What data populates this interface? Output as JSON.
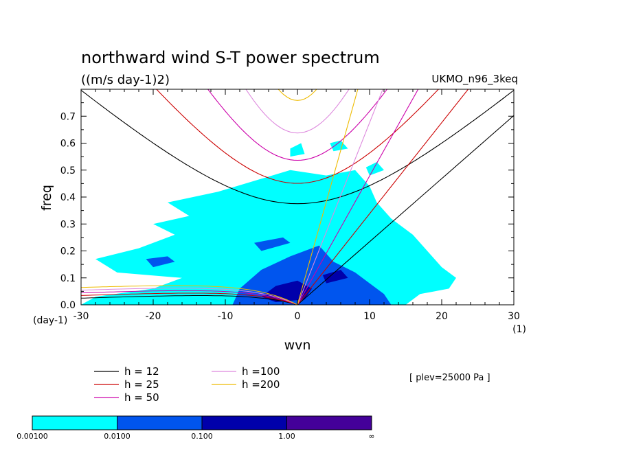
{
  "chart_data": {
    "type": "contour",
    "title": "northward wind S-T power spectrum",
    "subtitle": "((m/s day-1)2)",
    "dataset_label": "UKMO_n96_3keq",
    "xlabel": "wvn",
    "ylabel": "freq",
    "x_unit": "(1)",
    "y_unit": "(day-1)",
    "xlim": [
      -30,
      30
    ],
    "ylim": [
      0,
      0.8
    ],
    "x_ticks": [
      "-30",
      "-20",
      "-10",
      "0",
      "10",
      "20",
      "30"
    ],
    "y_ticks": [
      "0.0",
      "0.1",
      "0.2",
      "0.3",
      "0.4",
      "0.5",
      "0.6",
      "0.7"
    ],
    "level_note": "[ plev=25000 Pa ]",
    "dispersion_curves": [
      {
        "label": "h = 12",
        "h": 12,
        "color": "#000000"
      },
      {
        "label": "h = 25",
        "h": 25,
        "color": "#cc0000"
      },
      {
        "label": "h = 50",
        "h": 50,
        "color": "#cc00aa"
      },
      {
        "label": "h =100",
        "h": 100,
        "color": "#dd88dd"
      },
      {
        "label": "h =200",
        "h": 200,
        "color": "#eebb00"
      }
    ],
    "colorbar": {
      "levels": [
        "0.00100",
        "0.0100",
        "0.100",
        "1.00",
        "∞"
      ],
      "colors": [
        "#00ffff",
        "#0055ee",
        "#0000aa",
        "#440099"
      ]
    },
    "power_regions": [
      {
        "level": 1,
        "polygon": [
          [
            -30,
            0
          ],
          [
            -28,
            0.03
          ],
          [
            -20,
            0.06
          ],
          [
            -16,
            0.1
          ],
          [
            -25,
            0.12
          ],
          [
            -28,
            0.17
          ],
          [
            -22,
            0.21
          ],
          [
            -17,
            0.26
          ],
          [
            -20,
            0.3
          ],
          [
            -15,
            0.33
          ],
          [
            -18,
            0.38
          ],
          [
            -11,
            0.42
          ],
          [
            -6,
            0.46
          ],
          [
            -1,
            0.5
          ],
          [
            4,
            0.48
          ],
          [
            8,
            0.5
          ],
          [
            10,
            0.44
          ],
          [
            11,
            0.38
          ],
          [
            13,
            0.32
          ],
          [
            16,
            0.26
          ],
          [
            18,
            0.2
          ],
          [
            20,
            0.14
          ],
          [
            22,
            0.1
          ],
          [
            21,
            0.06
          ],
          [
            17,
            0.04
          ],
          [
            15,
            0
          ],
          [
            -30,
            0
          ]
        ]
      },
      {
        "level": 1,
        "polygon": [
          [
            -1,
            0.55
          ],
          [
            1,
            0.56
          ],
          [
            0.5,
            0.6
          ],
          [
            -1,
            0.58
          ]
        ]
      },
      {
        "level": 1,
        "polygon": [
          [
            5,
            0.57
          ],
          [
            7,
            0.58
          ],
          [
            6,
            0.61
          ],
          [
            4.5,
            0.6
          ]
        ]
      },
      {
        "level": 1,
        "polygon": [
          [
            10,
            0.48
          ],
          [
            12,
            0.5
          ],
          [
            11,
            0.53
          ],
          [
            9.5,
            0.51
          ]
        ]
      },
      {
        "level": 2,
        "polygon": [
          [
            -9,
            0.0
          ],
          [
            -8,
            0.06
          ],
          [
            -5,
            0.13
          ],
          [
            -1,
            0.18
          ],
          [
            3,
            0.22
          ],
          [
            5,
            0.16
          ],
          [
            8,
            0.12
          ],
          [
            10,
            0.08
          ],
          [
            12,
            0.04
          ],
          [
            13,
            0.0
          ],
          [
            -9,
            0.0
          ]
        ]
      },
      {
        "level": 2,
        "polygon": [
          [
            -20,
            0.14
          ],
          [
            -17,
            0.16
          ],
          [
            -18,
            0.18
          ],
          [
            -21,
            0.17
          ]
        ]
      },
      {
        "level": 2,
        "polygon": [
          [
            -5,
            0.2
          ],
          [
            -1,
            0.23
          ],
          [
            -2,
            0.25
          ],
          [
            -6,
            0.23
          ]
        ]
      },
      {
        "level": 3,
        "polygon": [
          [
            -5,
            0.03
          ],
          [
            -3,
            0.07
          ],
          [
            0,
            0.09
          ],
          [
            2,
            0.06
          ],
          [
            1,
            0.02
          ],
          [
            -3,
            0.01
          ]
        ]
      },
      {
        "level": 3,
        "polygon": [
          [
            4,
            0.08
          ],
          [
            7,
            0.1
          ],
          [
            6,
            0.13
          ],
          [
            3.5,
            0.11
          ]
        ]
      }
    ]
  }
}
